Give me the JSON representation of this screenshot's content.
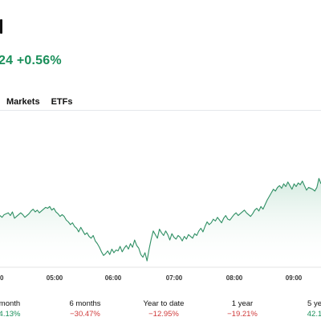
{
  "header": {
    "price_change_text": "24 +0.56%"
  },
  "colors": {
    "positive": "#1a8f5a",
    "negative": "#d03b3b",
    "line": "#2f8f64",
    "fill_top": "#cfe8dc"
  },
  "tabs": [
    {
      "label": "Markets"
    },
    {
      "label": "ETFs"
    }
  ],
  "chart_data": {
    "type": "area",
    "x_tick_labels": [
      "0",
      "05:00",
      "06:00",
      "07:00",
      "08:00",
      "09:00"
    ],
    "ylim": [
      0,
      100
    ],
    "grid": false,
    "series": [
      {
        "values": [
          57,
          55,
          58,
          59,
          60,
          57,
          61,
          54,
          56,
          58,
          60,
          58,
          55,
          57,
          59,
          62,
          64,
          61,
          63,
          60,
          62,
          64,
          66,
          65,
          67,
          63,
          65,
          61,
          59,
          56,
          58,
          56,
          52,
          50,
          47,
          49,
          45,
          43,
          39,
          44,
          40,
          36,
          38,
          34,
          32,
          35,
          29,
          26,
          22,
          17,
          13,
          15,
          18,
          14,
          20,
          16,
          19,
          18,
          23,
          17,
          21,
          24,
          20,
          26,
          22,
          30,
          24,
          21,
          14,
          11,
          16,
          7,
          20,
          31,
          40,
          36,
          32,
          42,
          38,
          35,
          40,
          36,
          30,
          37,
          33,
          31,
          35,
          33,
          29,
          34,
          31,
          36,
          34,
          32,
          37,
          35,
          40,
          43,
          39,
          45,
          50,
          47,
          49,
          53,
          51,
          55,
          52,
          49,
          54,
          57,
          53,
          52,
          55,
          58,
          60,
          57,
          59,
          61,
          63,
          60,
          58,
          56,
          59,
          63,
          65,
          62,
          67,
          64,
          69,
          74,
          78,
          82,
          86,
          84,
          88,
          90,
          87,
          92,
          89,
          94,
          90,
          86,
          92,
          89,
          93,
          91,
          95,
          90,
          85,
          88,
          87,
          86,
          84,
          88,
          98,
          92
        ]
      }
    ]
  },
  "performance": [
    {
      "label": "month",
      "value": "4.13%",
      "sign": "pos"
    },
    {
      "label": "6 months",
      "value": "−30.47%",
      "sign": "neg"
    },
    {
      "label": "Year to date",
      "value": "−12.95%",
      "sign": "neg"
    },
    {
      "label": "1 year",
      "value": "−19.21%",
      "sign": "neg"
    },
    {
      "label": "5 ye",
      "value": "42.1",
      "sign": "pos"
    }
  ]
}
